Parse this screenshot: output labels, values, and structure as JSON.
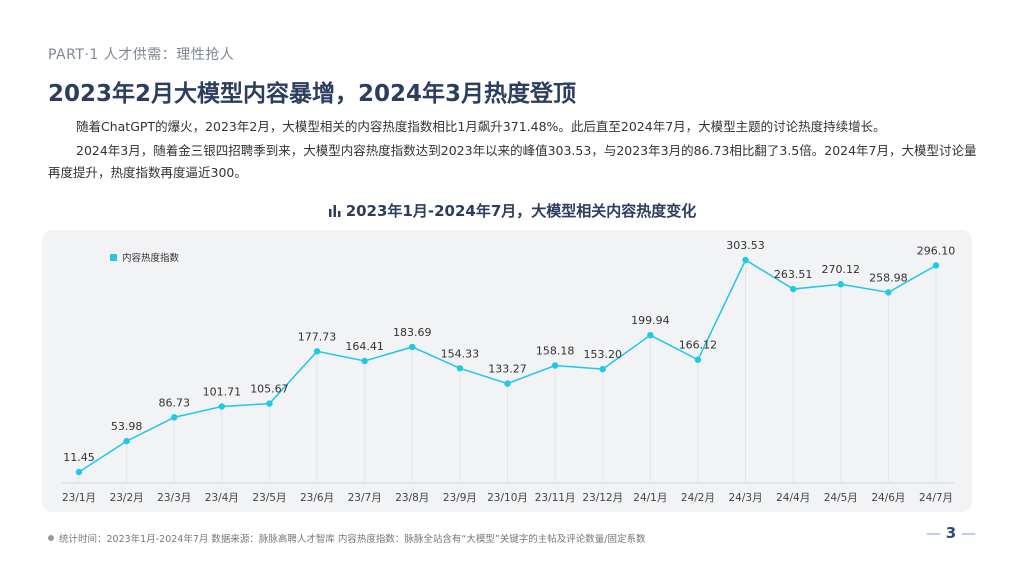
{
  "header": {
    "section": "PART·1  人才供需：理性抢人",
    "title": "2023年2月大模型内容暴增，2024年3月热度登顶"
  },
  "body": {
    "paragraph1": "随着ChatGPT的爆火，2023年2月，大模型相关的内容热度指数相比1月飙升371.48%。此后直至2024年7月，大模型主题的讨论热度持续增长。",
    "paragraph2": "2024年3月，随着金三银四招聘季到来，大模型内容热度指数达到2023年以来的峰值303.53，与2023年3月的86.73相比翻了3.5倍。2024年7月，大模型讨论量再度提升，热度指数再度逼近300。"
  },
  "chart_title": "2023年1月-2024年7月，大模型相关内容热度变化",
  "chart_icon": "bar-chart-icon",
  "colors": {
    "series": "#1ec8e6",
    "title": "#2c3e5f",
    "panel": "#f2f3f5"
  },
  "chart_data": {
    "type": "line",
    "title": "2023年1月-2024年7月，大模型相关内容热度变化",
    "categories": [
      "23/1月",
      "23/2月",
      "23/3月",
      "23/4月",
      "23/5月",
      "23/6月",
      "23/7月",
      "23/8月",
      "23/9月",
      "23/10月",
      "23/11月",
      "23/12月",
      "24/1月",
      "24/2月",
      "24/3月",
      "24/4月",
      "24/5月",
      "24/6月",
      "24/7月"
    ],
    "series": [
      {
        "name": "内容热度指数",
        "values": [
          11.45,
          53.98,
          86.73,
          101.71,
          105.67,
          177.73,
          164.41,
          183.69,
          154.33,
          133.27,
          158.18,
          153.2,
          199.94,
          166.12,
          303.53,
          263.51,
          270.12,
          258.98,
          296.1
        ],
        "labels": [
          "11.45",
          "53.98",
          "86.73",
          "101.71",
          "105.67",
          "177.73",
          "164.41",
          "183.69",
          "154.33",
          "133.27",
          "158.18",
          "153.20",
          "199.94",
          "166.12",
          "303.53",
          "263.51",
          "270.12",
          "258.98",
          "296.10"
        ]
      }
    ],
    "legend_position": "top-left",
    "grid": false,
    "xlabel": "",
    "ylabel": ""
  },
  "footer": {
    "note": "统计时间：2023年1月-2024年7月    数据来源：脉脉高聘人才智库    内容热度指数：脉脉全站含有“大模型”关键字的主帖及评论数量/固定系数",
    "page": "3"
  }
}
